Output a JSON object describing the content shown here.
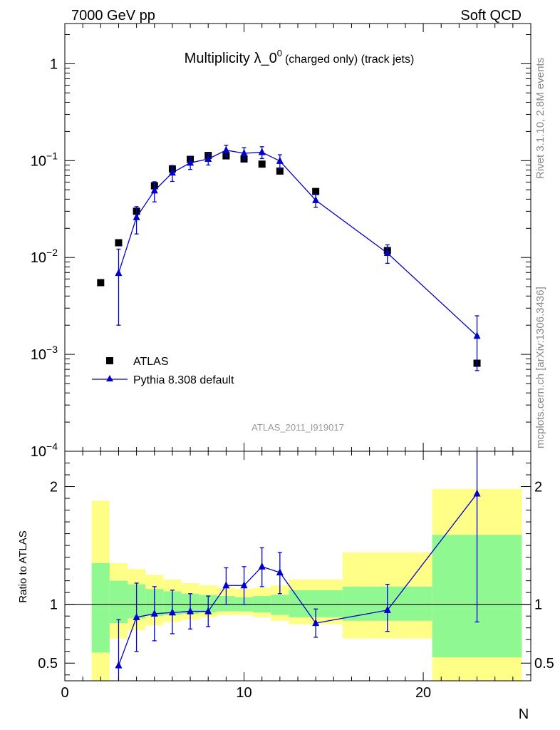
{
  "header": {
    "left": "7000 GeV pp",
    "right": "Soft QCD"
  },
  "chart_data": [
    {
      "type": "scatter",
      "title": "Multiplicity λ_0⁰",
      "title_main": "Multiplicity λ_0",
      "title_sup": "0",
      "title_suffix": "(charged only) (track jets)",
      "yscale": "log",
      "ylim": [
        0.0001,
        2.6
      ],
      "xlim": [
        0,
        26
      ],
      "y_ticks": [
        {
          "value": 1,
          "label": "1"
        },
        {
          "value": 0.1,
          "base": "10",
          "exp": "−1"
        },
        {
          "value": 0.01,
          "base": "10",
          "exp": "−2"
        },
        {
          "value": 0.001,
          "base": "10",
          "exp": "−3"
        },
        {
          "value": 0.0001,
          "base": "10",
          "exp": "−4"
        }
      ],
      "legend_position": "bottom-left",
      "series": [
        {
          "name": "ATLAS",
          "marker": "square",
          "color": "#000000",
          "x": [
            2,
            3,
            4,
            5,
            6,
            7,
            8,
            9,
            10,
            11,
            12,
            14,
            18,
            23
          ],
          "y": [
            0.0055,
            0.0142,
            0.03,
            0.055,
            0.082,
            0.103,
            0.113,
            0.112,
            0.104,
            0.092,
            0.078,
            0.048,
            0.0118,
            0.00081
          ],
          "yerr": [
            0,
            0,
            0.003,
            0.004,
            0.004,
            0.004,
            0.004,
            0.004,
            0.004,
            0.003,
            0.003,
            0.002,
            0.0008,
            8e-05
          ]
        },
        {
          "name": "Pythia 8.308 default",
          "marker": "triangle",
          "color": "#0000cc",
          "x": [
            3,
            4,
            5,
            6,
            7,
            8,
            9,
            10,
            11,
            12,
            14,
            18,
            23
          ],
          "y": [
            0.0069,
            0.026,
            0.049,
            0.075,
            0.095,
            0.104,
            0.128,
            0.119,
            0.122,
            0.099,
            0.039,
            0.0111,
            0.00155
          ],
          "ylow": [
            0.002,
            0.0175,
            0.0375,
            0.061,
            0.081,
            0.09,
            0.112,
            0.102,
            0.105,
            0.083,
            0.033,
            0.0087,
            0.00068
          ],
          "yhigh": [
            0.0122,
            0.0335,
            0.0605,
            0.089,
            0.109,
            0.118,
            0.144,
            0.136,
            0.139,
            0.115,
            0.045,
            0.0135,
            0.0025
          ]
        }
      ]
    },
    {
      "type": "scatter",
      "ylabel": "Ratio to ATLAS",
      "xlabel": "N",
      "ylim": [
        0.35,
        2.3
      ],
      "xlim": [
        0,
        26
      ],
      "y_ticks": [
        {
          "value": 0.5,
          "label": "0.5"
        },
        {
          "value": 1,
          "label": "1"
        },
        {
          "value": 2,
          "label": "2"
        }
      ],
      "x_ticks": [
        {
          "value": 0,
          "label": "0"
        },
        {
          "value": 10,
          "label": "10"
        },
        {
          "value": 20,
          "label": "20"
        }
      ],
      "bands": {
        "x_edges": [
          [
            1.5,
            2.5
          ],
          [
            2.5,
            3.5
          ],
          [
            3.5,
            4.5
          ],
          [
            4.5,
            5.5
          ],
          [
            5.5,
            6.5
          ],
          [
            6.5,
            7.5
          ],
          [
            7.5,
            8.5
          ],
          [
            8.5,
            9.5
          ],
          [
            9.5,
            10.5
          ],
          [
            10.5,
            11.5
          ],
          [
            11.5,
            12.5
          ],
          [
            12.5,
            15.5
          ],
          [
            15.5,
            20.5
          ],
          [
            20.5,
            25.5
          ]
        ],
        "green": [
          [
            0.59,
            1.35
          ],
          [
            0.84,
            1.2
          ],
          [
            0.88,
            1.17
          ],
          [
            0.9,
            1.13
          ],
          [
            0.91,
            1.11
          ],
          [
            0.92,
            1.09
          ],
          [
            0.93,
            1.08
          ],
          [
            0.94,
            1.07
          ],
          [
            0.94,
            1.06
          ],
          [
            0.93,
            1.07
          ],
          [
            0.91,
            1.08
          ],
          [
            0.89,
            1.12
          ],
          [
            0.86,
            1.15
          ],
          [
            0.55,
            1.59
          ]
        ],
        "yellow": [
          [
            0.3,
            1.88
          ],
          [
            0.71,
            1.35
          ],
          [
            0.78,
            1.3
          ],
          [
            0.82,
            1.25
          ],
          [
            0.85,
            1.21
          ],
          [
            0.87,
            1.18
          ],
          [
            0.89,
            1.16
          ],
          [
            0.91,
            1.14
          ],
          [
            0.91,
            1.13
          ],
          [
            0.89,
            1.14
          ],
          [
            0.86,
            1.16
          ],
          [
            0.83,
            1.21
          ],
          [
            0.71,
            1.44
          ],
          [
            0.3,
            1.98
          ]
        ],
        "green_color": "#90f890",
        "yellow_color": "#ffff88"
      },
      "series": [
        {
          "name": "Pythia 8.308 default",
          "marker": "triangle",
          "color": "#0000cc",
          "x": [
            3,
            4,
            5,
            6,
            7,
            8,
            9,
            10,
            11,
            12,
            14,
            18,
            23
          ],
          "y": [
            0.48,
            0.89,
            0.92,
            0.93,
            0.94,
            0.94,
            1.16,
            1.16,
            1.32,
            1.27,
            0.84,
            0.95,
            1.94
          ],
          "ylow": [
            0.32,
            0.6,
            0.69,
            0.75,
            0.79,
            0.81,
            1.0,
            1.0,
            1.15,
            1.09,
            0.72,
            0.77,
            0.85
          ],
          "yhigh": [
            0.87,
            1.18,
            1.15,
            1.12,
            1.09,
            1.07,
            1.31,
            1.32,
            1.48,
            1.44,
            0.96,
            1.17,
            2.35
          ]
        }
      ],
      "reference_line": 1
    }
  ],
  "side_labels": {
    "rivet": "Rivet 3.1.10,  2.8M events",
    "mcplots": "mcplots.cern.ch [arXiv:1306.3436]"
  },
  "analysis_id": "ATLAS_2011_I919017"
}
